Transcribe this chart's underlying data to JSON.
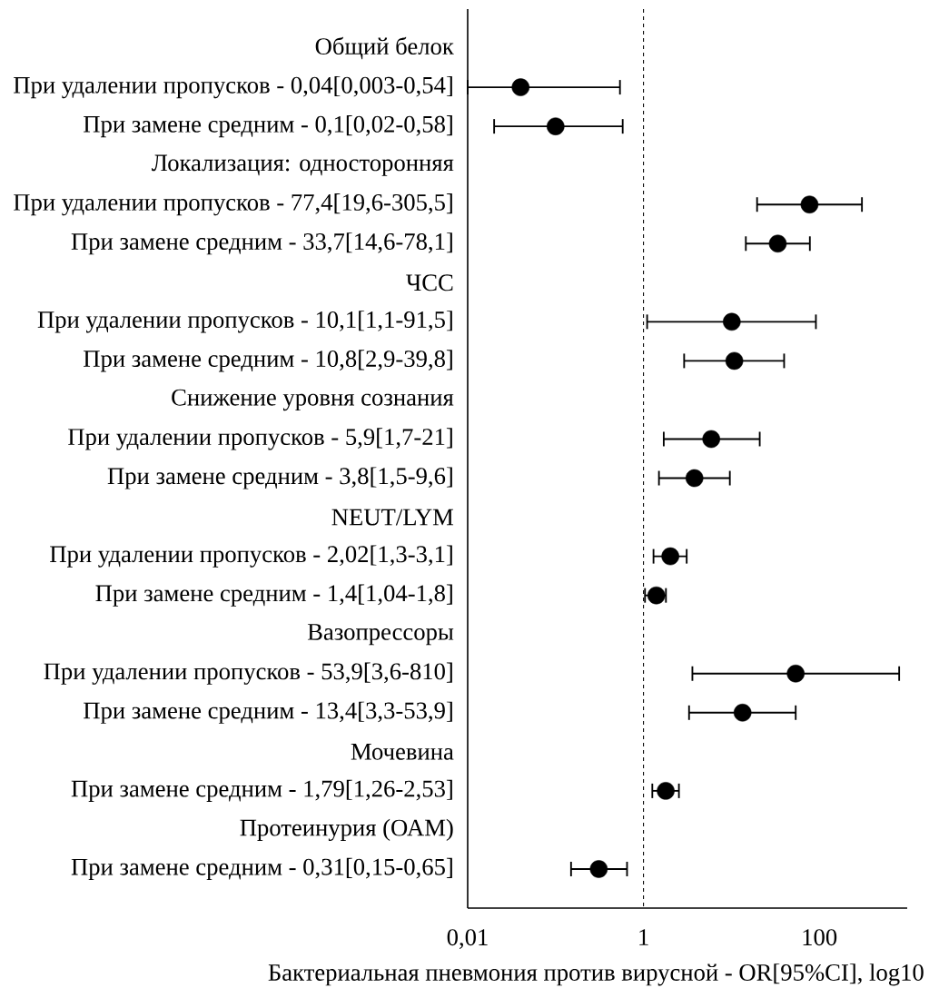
{
  "chart_data": {
    "type": "scatter",
    "orientation": "horizontal",
    "log": "x",
    "xlabel": "Бактериальная пневмония против вирусной - OR[95%CI], log10",
    "categories": [
      "Общий белок",
      "При удалении пропусков - 0,04[0,003-0,54]",
      "При замене средним - 0,1[0,02-0,58]",
      "Локализация: односторонняя",
      "При удалении пропусков - 77,4[19,6-305,5]",
      "При замене средним - 33,7[14,6-78,1]",
      "ЧСС",
      "При удалении пропусков - 10,1[1,1-91,5]",
      "При замене средним - 10,8[2,9-39,8]",
      "Снижение уровня сознания",
      "При удалении пропусков - 5,9[1,7-21]",
      "При замене средним - 3,8[1,5-9,6]",
      "NEUT/LYM",
      "При удалении пропусков - 2,02[1,3-3,1]",
      "При замене средним - 1,4[1,04-1,8]",
      "Вазопрессоры",
      "При удалении пропусков - 53,9[3,6-810]",
      "При замене средним - 13,4[3,3-53,9]",
      "Мочевина",
      "При замене средним - 1,79[1,26-2,53]",
      "Протеинурия (ОАМ)",
      "При замене средним - 0,31[0,15-0,65]"
    ],
    "values": [
      null,
      0.04,
      0.1,
      null,
      77.4,
      33.7,
      null,
      10.1,
      10.8,
      null,
      5.9,
      3.8,
      null,
      2.02,
      1.4,
      null,
      53.9,
      13.4,
      null,
      1.79,
      null,
      0.31
    ],
    "errors": [
      null,
      [
        0.01,
        0.54
      ],
      [
        0.02,
        0.58
      ],
      null,
      [
        19.6,
        305.5
      ],
      [
        14.6,
        78.1
      ],
      null,
      [
        1.1,
        91.5
      ],
      [
        2.9,
        39.8
      ],
      null,
      [
        1.7,
        21
      ],
      [
        1.5,
        9.6
      ],
      null,
      [
        1.3,
        3.1
      ],
      [
        1.04,
        1.8
      ],
      null,
      [
        3.6,
        810
      ],
      [
        3.3,
        53.9
      ],
      null,
      [
        1.26,
        2.53
      ],
      null,
      [
        0.15,
        0.65
      ]
    ],
    "color": "#000000",
    "marker": "circle",
    "xlim": [
      0.01,
      1000
    ],
    "xticks": [
      {
        "value": 0.01,
        "label": "0,01"
      },
      1,
      100
    ],
    "ref_lines": [
      {
        "axis": "x",
        "value": 1,
        "line_style": "dashed",
        "color": "#000000"
      }
    ]
  }
}
